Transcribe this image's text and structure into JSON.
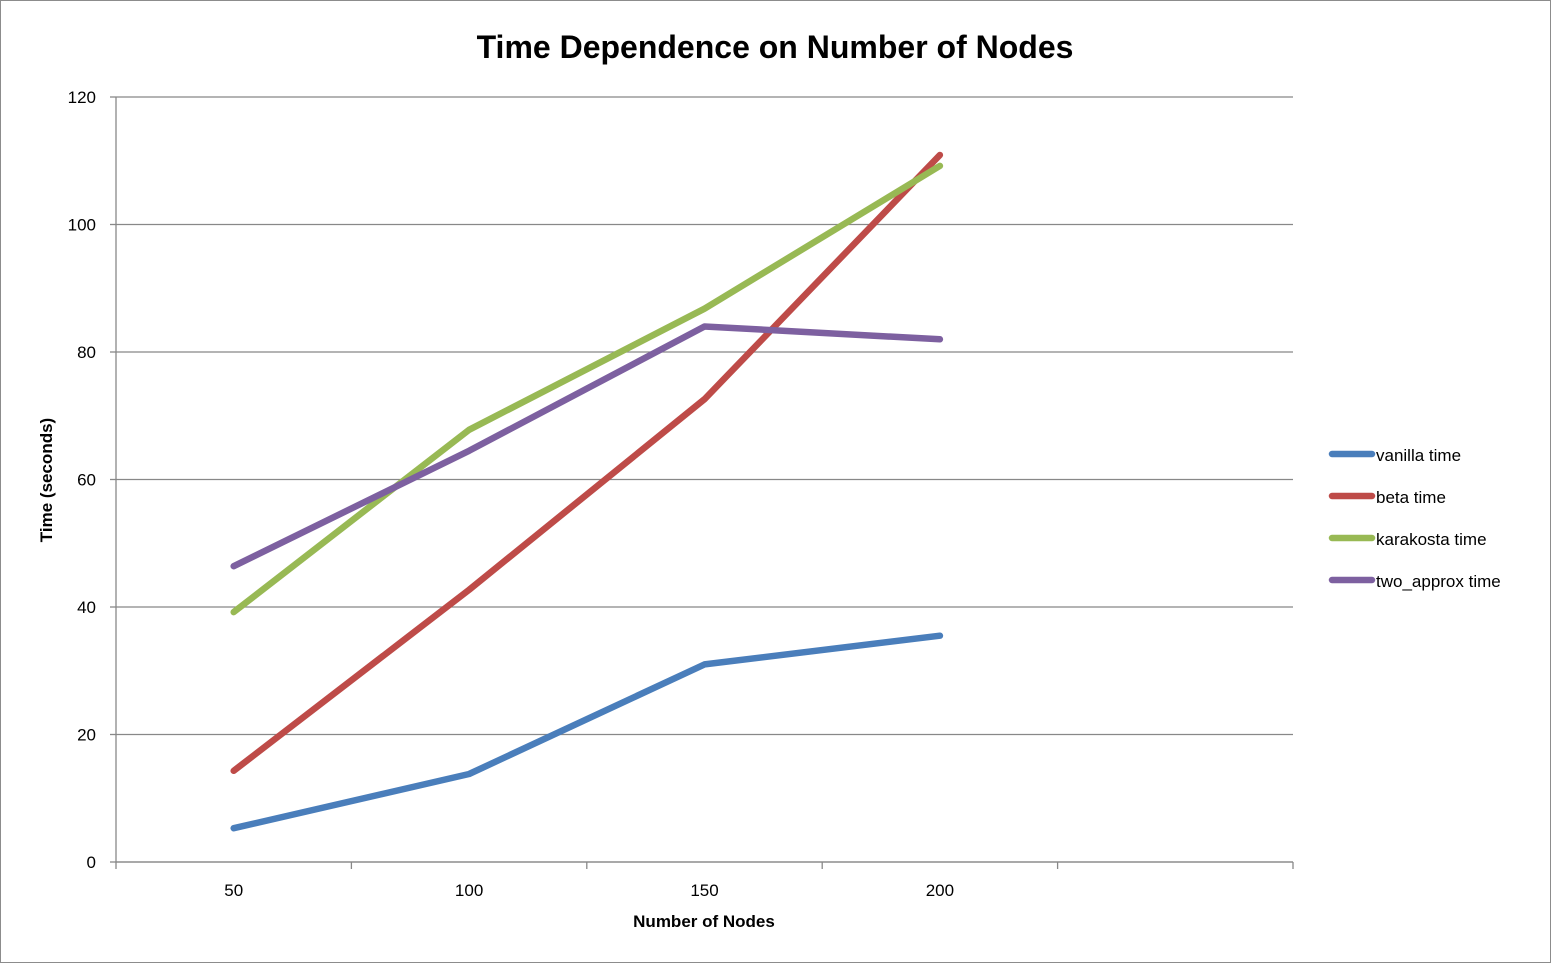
{
  "chart_data": {
    "type": "line",
    "title": "Time Dependence on Number of Nodes",
    "xlabel": "Number of Nodes",
    "ylabel": "Time (seconds)",
    "categories": [
      "50",
      "100",
      "150",
      "200"
    ],
    "ylim": [
      0,
      120
    ],
    "yticks": [
      0,
      20,
      40,
      60,
      80,
      100,
      120
    ],
    "grid": "horizontal",
    "legend_position": "right",
    "series": [
      {
        "name": "vanilla time",
        "color": "#4a7ebb",
        "values": [
          5.3,
          13.8,
          31.0,
          35.5
        ]
      },
      {
        "name": "beta time",
        "color": "#be4b48",
        "values": [
          14.3,
          42.7,
          72.6,
          110.9
        ]
      },
      {
        "name": "karakosta time",
        "color": "#98b954",
        "values": [
          39.2,
          67.8,
          86.8,
          109.2
        ]
      },
      {
        "name": "two_approx time",
        "color": "#7d60a0",
        "values": [
          46.4,
          64.5,
          84.0,
          82.0
        ]
      }
    ]
  }
}
